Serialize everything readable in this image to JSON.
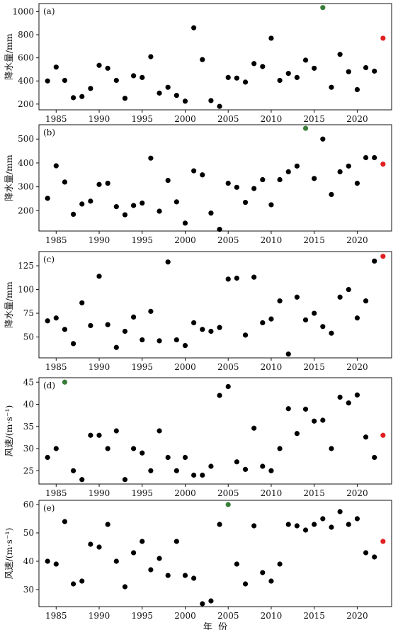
{
  "chart_data": [
    {
      "type": "scatter",
      "panel_label": "(a)",
      "ylabel": "降水量/mm",
      "xlim": [
        1983,
        2024
      ],
      "ylim": [
        150,
        1070
      ],
      "xticks": [
        1985,
        1990,
        1995,
        2000,
        2005,
        2010,
        2015,
        2020
      ],
      "yticks": [
        200,
        400,
        600,
        800,
        1000
      ],
      "x": [
        1984,
        1985,
        1986,
        1987,
        1988,
        1989,
        1990,
        1991,
        1992,
        1993,
        1994,
        1995,
        1996,
        1997,
        1998,
        1999,
        2000,
        2001,
        2002,
        2003,
        2004,
        2005,
        2006,
        2007,
        2008,
        2009,
        2010,
        2011,
        2012,
        2013,
        2014,
        2015,
        2016,
        2017,
        2018,
        2019,
        2020,
        2021,
        2022,
        2023
      ],
      "y": [
        400,
        520,
        405,
        255,
        265,
        335,
        535,
        510,
        405,
        250,
        445,
        430,
        610,
        295,
        345,
        275,
        225,
        860,
        585,
        230,
        180,
        430,
        425,
        390,
        550,
        525,
        770,
        405,
        465,
        430,
        580,
        510,
        1035,
        345,
        630,
        480,
        325,
        515,
        485,
        770
      ],
      "point_colors": {
        "default": "#000000",
        "max_point": "#3a7d3a",
        "year_2023": "#e02020"
      },
      "max_index": 32,
      "highlight_index": 39,
      "grid": false
    },
    {
      "type": "scatter",
      "panel_label": "(b)",
      "ylabel": "降水量/mm",
      "xlim": [
        1983,
        2024
      ],
      "ylim": [
        115,
        560
      ],
      "xticks": [
        1985,
        1990,
        1995,
        2000,
        2005,
        2010,
        2015,
        2020
      ],
      "yticks": [
        200,
        300,
        400,
        500
      ],
      "x": [
        1984,
        1985,
        1986,
        1987,
        1988,
        1989,
        1990,
        1991,
        1992,
        1993,
        1994,
        1995,
        1996,
        1997,
        1998,
        1999,
        2000,
        2001,
        2002,
        2003,
        2004,
        2005,
        2006,
        2007,
        2008,
        2009,
        2010,
        2011,
        2012,
        2013,
        2014,
        2015,
        2016,
        2017,
        2018,
        2019,
        2020,
        2021,
        2022,
        2023
      ],
      "y": [
        252,
        388,
        320,
        185,
        228,
        240,
        310,
        315,
        217,
        183,
        222,
        232,
        420,
        198,
        327,
        237,
        148,
        367,
        350,
        190,
        122,
        315,
        298,
        235,
        293,
        330,
        225,
        330,
        363,
        387,
        545,
        335,
        500,
        268,
        363,
        387,
        315,
        422,
        422,
        395
      ],
      "point_colors": {
        "default": "#000000",
        "max_point": "#3a7d3a",
        "year_2023": "#e02020"
      },
      "max_index": 30,
      "highlight_index": 39,
      "grid": false
    },
    {
      "type": "scatter",
      "panel_label": "(c)",
      "ylabel": "降水量/mm",
      "xlim": [
        1983,
        2024
      ],
      "ylim": [
        28,
        140
      ],
      "xticks": [
        1985,
        1990,
        1995,
        2000,
        2005,
        2010,
        2015,
        2020
      ],
      "yticks": [
        50,
        75,
        100,
        125
      ],
      "x": [
        1984,
        1985,
        1986,
        1987,
        1988,
        1989,
        1990,
        1991,
        1992,
        1993,
        1994,
        1995,
        1996,
        1997,
        1998,
        1999,
        2000,
        2001,
        2002,
        2003,
        2004,
        2005,
        2006,
        2007,
        2008,
        2009,
        2010,
        2011,
        2012,
        2013,
        2014,
        2015,
        2016,
        2017,
        2018,
        2019,
        2020,
        2021,
        2022,
        2023
      ],
      "y": [
        67,
        70,
        58,
        43,
        86,
        62,
        114,
        63,
        39,
        56,
        71,
        47,
        77,
        46,
        129,
        47,
        41,
        65,
        58,
        56,
        60,
        111,
        112,
        52,
        113,
        65,
        69,
        88,
        32,
        92,
        68,
        75,
        61,
        54,
        92,
        100,
        70,
        88,
        130,
        135
      ],
      "point_colors": {
        "default": "#000000",
        "year_2023": "#e02020"
      },
      "highlight_index": 39,
      "grid": false
    },
    {
      "type": "scatter",
      "panel_label": "(d)",
      "ylabel": "风速/(m·s⁻¹)",
      "xlim": [
        1983,
        2024
      ],
      "ylim": [
        22,
        46
      ],
      "xticks": [
        1985,
        1990,
        1995,
        2000,
        2005,
        2010,
        2015,
        2020
      ],
      "yticks": [
        25,
        30,
        35,
        40,
        45
      ],
      "x": [
        1984,
        1985,
        1986,
        1987,
        1988,
        1989,
        1990,
        1991,
        1992,
        1993,
        1994,
        1995,
        1996,
        1997,
        1998,
        1999,
        2000,
        2001,
        2002,
        2003,
        2004,
        2005,
        2006,
        2007,
        2008,
        2009,
        2010,
        2011,
        2012,
        2013,
        2014,
        2015,
        2016,
        2017,
        2018,
        2019,
        2020,
        2021,
        2022,
        2023
      ],
      "y": [
        28,
        30,
        45,
        25,
        23,
        33,
        33,
        30,
        34,
        23,
        30,
        29,
        25,
        34,
        28,
        25,
        28,
        24,
        24,
        26,
        42,
        44,
        27,
        25.3,
        34.6,
        26,
        25,
        30,
        39,
        33.4,
        38.9,
        36.2,
        36.4,
        30,
        41.6,
        40.3,
        42.1,
        32.6,
        28,
        33
      ],
      "point_colors": {
        "default": "#000000",
        "max_point": "#3a7d3a",
        "year_2023": "#e02020"
      },
      "max_index": 2,
      "highlight_index": 39,
      "grid": false
    },
    {
      "type": "scatter",
      "panel_label": "(e)",
      "ylabel": "风速/(m·s⁻¹)",
      "xlim": [
        1983,
        2024
      ],
      "ylim": [
        24,
        61.5
      ],
      "xticks": [
        1985,
        1990,
        1995,
        2000,
        2005,
        2010,
        2015,
        2020
      ],
      "yticks": [
        30,
        40,
        50,
        60
      ],
      "xlabel": "年  份",
      "x": [
        1984,
        1985,
        1986,
        1987,
        1988,
        1989,
        1990,
        1991,
        1992,
        1993,
        1994,
        1995,
        1996,
        1997,
        1998,
        1999,
        2000,
        2001,
        2002,
        2003,
        2004,
        2005,
        2006,
        2007,
        2008,
        2009,
        2010,
        2011,
        2012,
        2013,
        2014,
        2015,
        2016,
        2017,
        2018,
        2019,
        2020,
        2021,
        2022,
        2023
      ],
      "y": [
        40,
        39,
        54,
        32,
        33,
        46,
        45,
        53,
        40,
        31,
        43,
        47,
        37,
        41,
        35,
        47,
        35,
        34,
        25,
        26,
        53,
        60,
        39,
        32,
        52.5,
        36,
        33,
        39,
        53,
        52.5,
        51,
        53,
        55,
        52,
        57.5,
        53,
        55,
        43,
        41.5,
        47
      ],
      "point_colors": {
        "default": "#000000",
        "max_point": "#3a7d3a",
        "year_2023": "#e02020"
      },
      "max_index": 21,
      "highlight_index": 39,
      "grid": false
    }
  ]
}
